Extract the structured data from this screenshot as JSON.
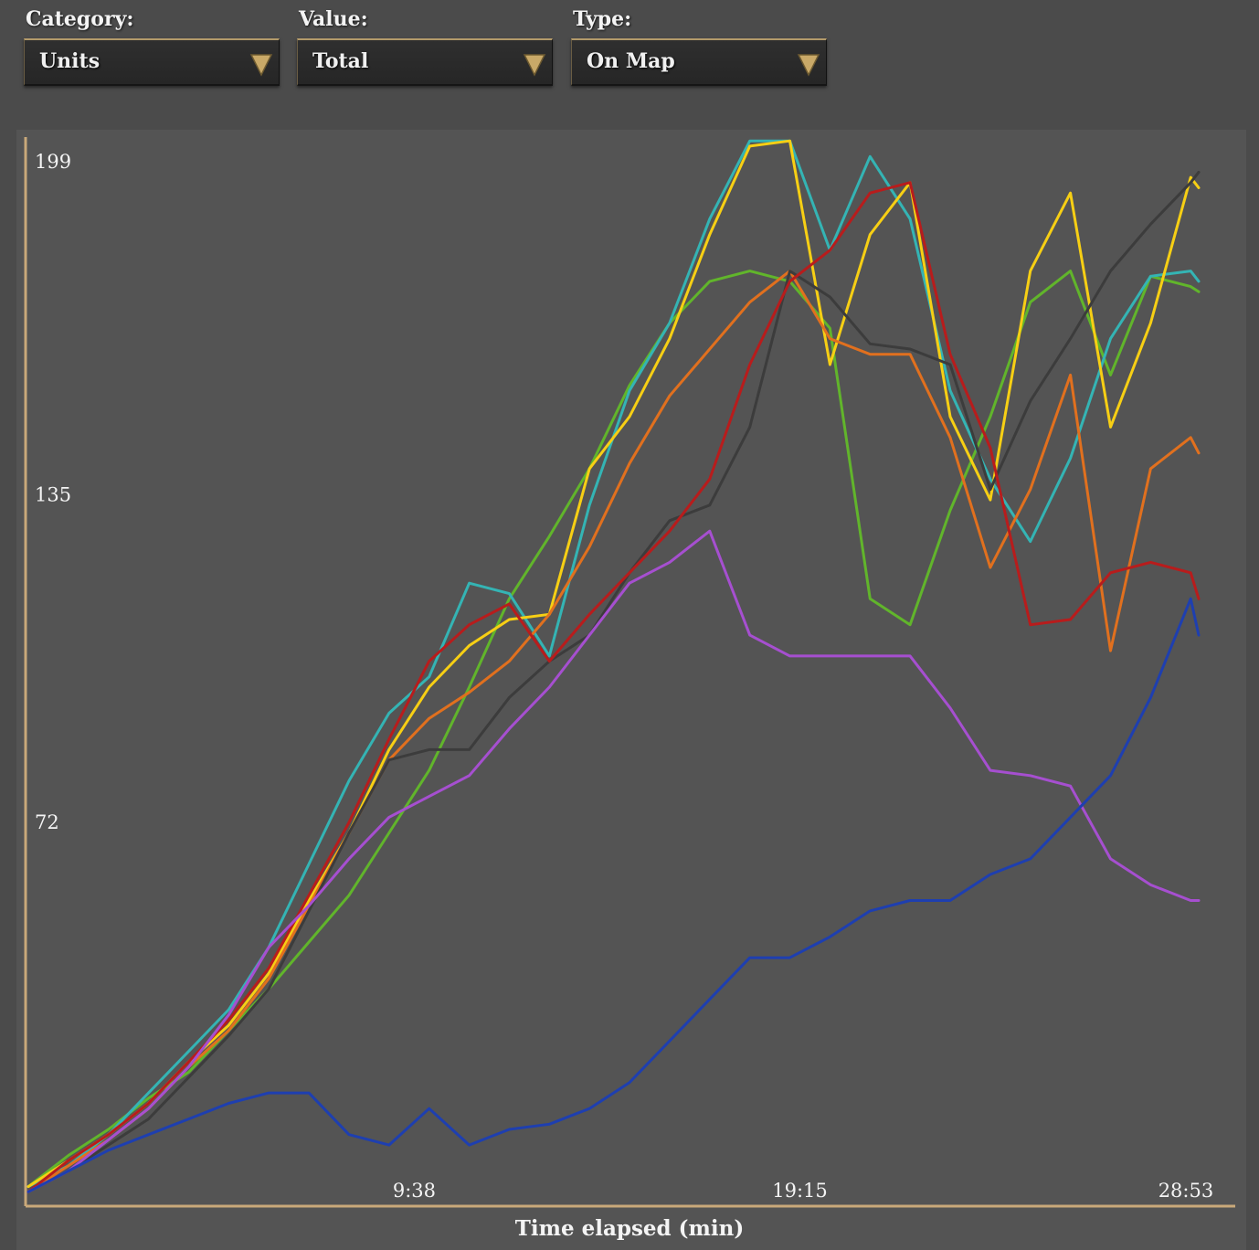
{
  "filters": {
    "category": {
      "label": "Category:",
      "value": "Units"
    },
    "value": {
      "label": "Value:",
      "value": "Total"
    },
    "type": {
      "label": "Type:",
      "value": "On Map"
    }
  },
  "colors": {
    "axis": "#c9a97a",
    "dropdown_arrow": "#c9a968"
  },
  "chart_data": {
    "type": "line",
    "xlabel": "Time elapsed (min)",
    "ylabel": "",
    "x_range_min": [
      0,
      29.2
    ],
    "ylim": [
      0,
      203
    ],
    "y_ticks": [
      {
        "value": 199,
        "label": "199"
      },
      {
        "value": 135,
        "label": "135"
      },
      {
        "value": 72,
        "label": "72"
      }
    ],
    "x_ticks": [
      {
        "value": 9.63,
        "label": "9:38"
      },
      {
        "value": 19.25,
        "label": "19:15"
      },
      {
        "value": 28.88,
        "label": "28:53"
      }
    ],
    "legend": "none",
    "grid": false,
    "series": [
      {
        "color": "#61b52b",
        "points": [
          [
            0,
            2
          ],
          [
            1,
            8
          ],
          [
            2,
            13
          ],
          [
            3,
            19
          ],
          [
            4,
            24
          ],
          [
            5,
            32
          ],
          [
            6,
            40
          ],
          [
            7,
            49
          ],
          [
            8,
            58
          ],
          [
            9,
            70
          ],
          [
            10,
            82
          ],
          [
            11,
            98
          ],
          [
            12,
            115
          ],
          [
            13,
            127
          ],
          [
            14,
            140
          ],
          [
            15,
            156
          ],
          [
            16,
            168
          ],
          [
            17,
            176
          ],
          [
            18,
            178
          ],
          [
            19,
            176
          ],
          [
            20,
            167
          ],
          [
            21,
            115
          ],
          [
            22,
            110
          ],
          [
            23,
            132
          ],
          [
            24,
            150
          ],
          [
            25,
            172
          ],
          [
            26,
            178
          ],
          [
            27,
            158
          ],
          [
            28,
            177
          ],
          [
            29,
            175
          ],
          [
            29.2,
            174
          ]
        ]
      },
      {
        "color": "#34b4b4",
        "points": [
          [
            0,
            2
          ],
          [
            1,
            6
          ],
          [
            2,
            12
          ],
          [
            3,
            20
          ],
          [
            4,
            28
          ],
          [
            5,
            36
          ],
          [
            6,
            48
          ],
          [
            7,
            64
          ],
          [
            8,
            80
          ],
          [
            9,
            93
          ],
          [
            10,
            100
          ],
          [
            11,
            118
          ],
          [
            12,
            116
          ],
          [
            13,
            104
          ],
          [
            14,
            133
          ],
          [
            15,
            155
          ],
          [
            16,
            168
          ],
          [
            17,
            188
          ],
          [
            18,
            203
          ],
          [
            19,
            203
          ],
          [
            20,
            182
          ],
          [
            21,
            200
          ],
          [
            22,
            188
          ],
          [
            23,
            155
          ],
          [
            24,
            138
          ],
          [
            25,
            126
          ],
          [
            26,
            142
          ],
          [
            27,
            165
          ],
          [
            28,
            177
          ],
          [
            29,
            178
          ],
          [
            29.2,
            176
          ]
        ]
      },
      {
        "color": "#f7cf14",
        "points": [
          [
            0,
            2
          ],
          [
            1,
            7
          ],
          [
            2,
            12
          ],
          [
            3,
            18
          ],
          [
            4,
            26
          ],
          [
            5,
            33
          ],
          [
            6,
            43
          ],
          [
            7,
            57
          ],
          [
            8,
            70
          ],
          [
            9,
            86
          ],
          [
            10,
            98
          ],
          [
            11,
            106
          ],
          [
            12,
            111
          ],
          [
            13,
            112
          ],
          [
            14,
            140
          ],
          [
            15,
            150
          ],
          [
            16,
            165
          ],
          [
            17,
            185
          ],
          [
            18,
            202
          ],
          [
            19,
            203
          ],
          [
            20,
            160
          ],
          [
            21,
            185
          ],
          [
            22,
            195
          ],
          [
            23,
            150
          ],
          [
            24,
            134
          ],
          [
            25,
            178
          ],
          [
            26,
            193
          ],
          [
            27,
            148
          ],
          [
            28,
            168
          ],
          [
            29,
            196
          ],
          [
            29.2,
            194
          ]
        ]
      },
      {
        "color": "#e1701e",
        "points": [
          [
            0,
            1
          ],
          [
            1,
            6
          ],
          [
            2,
            11
          ],
          [
            3,
            17
          ],
          [
            4,
            25
          ],
          [
            5,
            32
          ],
          [
            6,
            42
          ],
          [
            7,
            56
          ],
          [
            8,
            70
          ],
          [
            9,
            84
          ],
          [
            10,
            92
          ],
          [
            11,
            97
          ],
          [
            12,
            103
          ],
          [
            13,
            112
          ],
          [
            14,
            125
          ],
          [
            15,
            141
          ],
          [
            16,
            154
          ],
          [
            17,
            163
          ],
          [
            18,
            172
          ],
          [
            19,
            178
          ],
          [
            20,
            165
          ],
          [
            21,
            162
          ],
          [
            22,
            162
          ],
          [
            23,
            146
          ],
          [
            24,
            121
          ],
          [
            25,
            136
          ],
          [
            26,
            158
          ],
          [
            27,
            105
          ],
          [
            28,
            140
          ],
          [
            29,
            146
          ],
          [
            29.2,
            143
          ]
        ]
      },
      {
        "color": "#3c3c3c",
        "points": [
          [
            0,
            1
          ],
          [
            1,
            5
          ],
          [
            2,
            10
          ],
          [
            3,
            15
          ],
          [
            4,
            23
          ],
          [
            5,
            31
          ],
          [
            6,
            40
          ],
          [
            7,
            55
          ],
          [
            8,
            70
          ],
          [
            9,
            84
          ],
          [
            10,
            86
          ],
          [
            11,
            86
          ],
          [
            12,
            96
          ],
          [
            13,
            103
          ],
          [
            14,
            108
          ],
          [
            15,
            120
          ],
          [
            16,
            130
          ],
          [
            17,
            133
          ],
          [
            18,
            148
          ],
          [
            19,
            178
          ],
          [
            20,
            173
          ],
          [
            21,
            164
          ],
          [
            22,
            163
          ],
          [
            23,
            160
          ],
          [
            24,
            136
          ],
          [
            25,
            153
          ],
          [
            26,
            165
          ],
          [
            27,
            178
          ],
          [
            28,
            187
          ],
          [
            29,
            195
          ],
          [
            29.2,
            197
          ]
        ]
      },
      {
        "color": "#b81c1c",
        "points": [
          [
            0,
            1
          ],
          [
            1,
            7
          ],
          [
            2,
            12
          ],
          [
            3,
            18
          ],
          [
            4,
            26
          ],
          [
            5,
            34
          ],
          [
            6,
            44
          ],
          [
            7,
            58
          ],
          [
            8,
            72
          ],
          [
            9,
            88
          ],
          [
            10,
            103
          ],
          [
            11,
            110
          ],
          [
            12,
            114
          ],
          [
            13,
            103
          ],
          [
            14,
            112
          ],
          [
            15,
            120
          ],
          [
            16,
            128
          ],
          [
            17,
            138
          ],
          [
            18,
            160
          ],
          [
            19,
            176
          ],
          [
            20,
            182
          ],
          [
            21,
            193
          ],
          [
            22,
            195
          ],
          [
            23,
            162
          ],
          [
            24,
            144
          ],
          [
            25,
            110
          ],
          [
            26,
            111
          ],
          [
            27,
            120
          ],
          [
            28,
            122
          ],
          [
            29,
            120
          ],
          [
            29.2,
            115
          ]
        ]
      },
      {
        "color": "#a64fd0",
        "points": [
          [
            0,
            1
          ],
          [
            1,
            5
          ],
          [
            2,
            11
          ],
          [
            3,
            17
          ],
          [
            4,
            25
          ],
          [
            5,
            35
          ],
          [
            6,
            48
          ],
          [
            7,
            56
          ],
          [
            8,
            65
          ],
          [
            9,
            73
          ],
          [
            10,
            77
          ],
          [
            11,
            81
          ],
          [
            12,
            90
          ],
          [
            13,
            98
          ],
          [
            14,
            108
          ],
          [
            15,
            118
          ],
          [
            16,
            122
          ],
          [
            17,
            128
          ],
          [
            18,
            108
          ],
          [
            19,
            104
          ],
          [
            20,
            104
          ],
          [
            21,
            104
          ],
          [
            22,
            104
          ],
          [
            23,
            94
          ],
          [
            24,
            82
          ],
          [
            25,
            81
          ],
          [
            26,
            79
          ],
          [
            27,
            65
          ],
          [
            28,
            60
          ],
          [
            29,
            57
          ],
          [
            29.2,
            57
          ]
        ]
      },
      {
        "color": "#1e3fb0",
        "points": [
          [
            0,
            1
          ],
          [
            1,
            5
          ],
          [
            2,
            9
          ],
          [
            3,
            12
          ],
          [
            4,
            15
          ],
          [
            5,
            18
          ],
          [
            6,
            20
          ],
          [
            7,
            20
          ],
          [
            8,
            12
          ],
          [
            9,
            10
          ],
          [
            10,
            17
          ],
          [
            11,
            10
          ],
          [
            12,
            13
          ],
          [
            13,
            14
          ],
          [
            14,
            17
          ],
          [
            15,
            22
          ],
          [
            16,
            30
          ],
          [
            17,
            38
          ],
          [
            18,
            46
          ],
          [
            19,
            46
          ],
          [
            20,
            50
          ],
          [
            21,
            55
          ],
          [
            22,
            57
          ],
          [
            23,
            57
          ],
          [
            24,
            62
          ],
          [
            25,
            65
          ],
          [
            26,
            73
          ],
          [
            27,
            81
          ],
          [
            28,
            96
          ],
          [
            29,
            115
          ],
          [
            29.2,
            108
          ]
        ]
      }
    ]
  }
}
